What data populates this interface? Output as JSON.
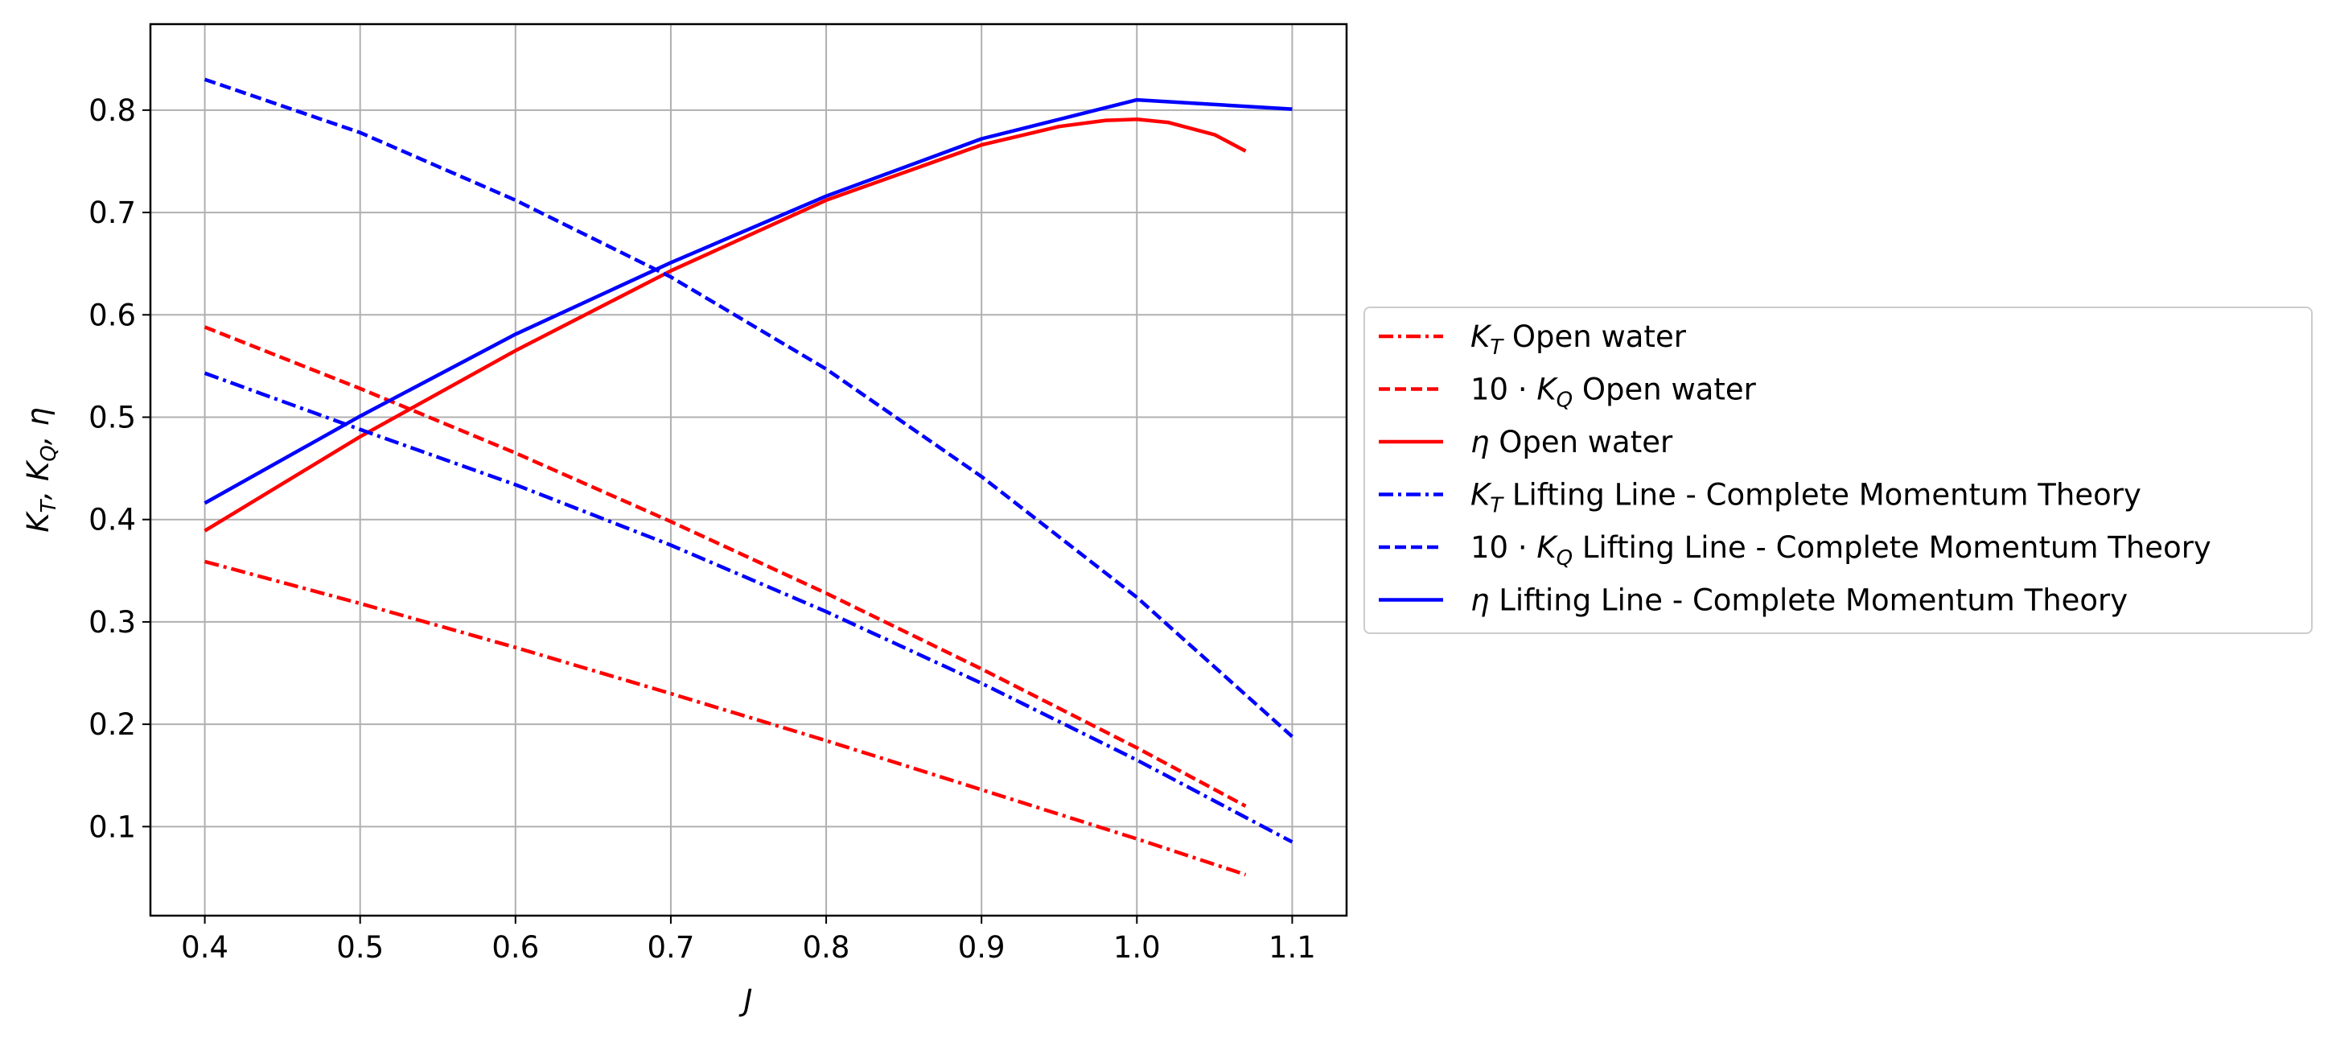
{
  "chart_data": {
    "type": "line",
    "title": "",
    "xlabel": "J",
    "ylabel": "K_T, K_Q, η",
    "xlim": [
      0.365,
      1.135
    ],
    "ylim": [
      0.013,
      0.884
    ],
    "xticks": [
      0.4,
      0.5,
      0.6,
      0.7,
      0.8,
      0.9,
      1.0,
      1.1
    ],
    "xtick_labels": [
      "0.4",
      "0.5",
      "0.6",
      "0.7",
      "0.8",
      "0.9",
      "1.0",
      "1.1"
    ],
    "yticks": [
      0.1,
      0.2,
      0.3,
      0.4,
      0.5,
      0.6,
      0.7,
      0.8
    ],
    "ytick_labels": [
      "0.1",
      "0.2",
      "0.3",
      "0.4",
      "0.5",
      "0.6",
      "0.7",
      "0.8"
    ],
    "grid": true,
    "legend_position": "outside-right",
    "series": [
      {
        "name": "K_T Open water",
        "symbol": "K",
        "sub": "T",
        "prefix": "",
        "rest": " Open water",
        "color": "#ff0000",
        "style": "dashdot",
        "x": [
          0.4,
          0.5,
          0.6,
          0.7,
          0.8,
          0.9,
          1.0,
          1.07
        ],
        "y": [
          0.359,
          0.318,
          0.275,
          0.23,
          0.184,
          0.136,
          0.088,
          0.053
        ]
      },
      {
        "name": "10·K_Q Open water",
        "symbol": "K",
        "sub": "Q",
        "prefix": "10 · ",
        "rest": " Open water",
        "color": "#ff0000",
        "style": "dashed",
        "x": [
          0.4,
          0.5,
          0.6,
          0.7,
          0.8,
          0.9,
          1.0,
          1.07
        ],
        "y": [
          0.588,
          0.528,
          0.465,
          0.398,
          0.328,
          0.254,
          0.177,
          0.12
        ]
      },
      {
        "name": "η Open water",
        "symbol": "η",
        "sub": "",
        "prefix": "",
        "rest": " Open water",
        "color": "#ff0000",
        "style": "solid",
        "x": [
          0.4,
          0.5,
          0.6,
          0.7,
          0.8,
          0.9,
          0.95,
          0.98,
          1.0,
          1.02,
          1.05,
          1.07
        ],
        "y": [
          0.389,
          0.481,
          0.565,
          0.643,
          0.712,
          0.766,
          0.784,
          0.79,
          0.791,
          0.788,
          0.776,
          0.76
        ]
      },
      {
        "name": "K_T Lifting Line - Complete Momentum Theory",
        "symbol": "K",
        "sub": "T",
        "prefix": "",
        "rest": " Lifting Line - Complete Momentum Theory",
        "color": "#0000ff",
        "style": "dashdot",
        "x": [
          0.4,
          0.5,
          0.6,
          0.7,
          0.8,
          0.9,
          1.0,
          1.1
        ],
        "y": [
          0.543,
          0.488,
          0.434,
          0.375,
          0.31,
          0.24,
          0.165,
          0.085
        ]
      },
      {
        "name": "10·K_Q Lifting Line - Complete Momentum Theory",
        "symbol": "K",
        "sub": "Q",
        "prefix": "10 · ",
        "rest": " Lifting Line - Complete Momentum Theory",
        "color": "#0000ff",
        "style": "dashed",
        "x": [
          0.4,
          0.5,
          0.6,
          0.7,
          0.8,
          0.9,
          1.0,
          1.1
        ],
        "y": [
          0.83,
          0.778,
          0.712,
          0.637,
          0.547,
          0.442,
          0.324,
          0.188
        ]
      },
      {
        "name": "η Lifting Line - Complete Momentum Theory",
        "symbol": "η",
        "sub": "",
        "prefix": "",
        "rest": " Lifting Line - Complete Momentum Theory",
        "color": "#0000ff",
        "style": "solid",
        "x": [
          0.4,
          0.5,
          0.6,
          0.7,
          0.8,
          0.9,
          1.0,
          1.1
        ],
        "y": [
          0.416,
          0.501,
          0.581,
          0.651,
          0.716,
          0.772,
          0.81,
          0.801
        ]
      }
    ]
  }
}
